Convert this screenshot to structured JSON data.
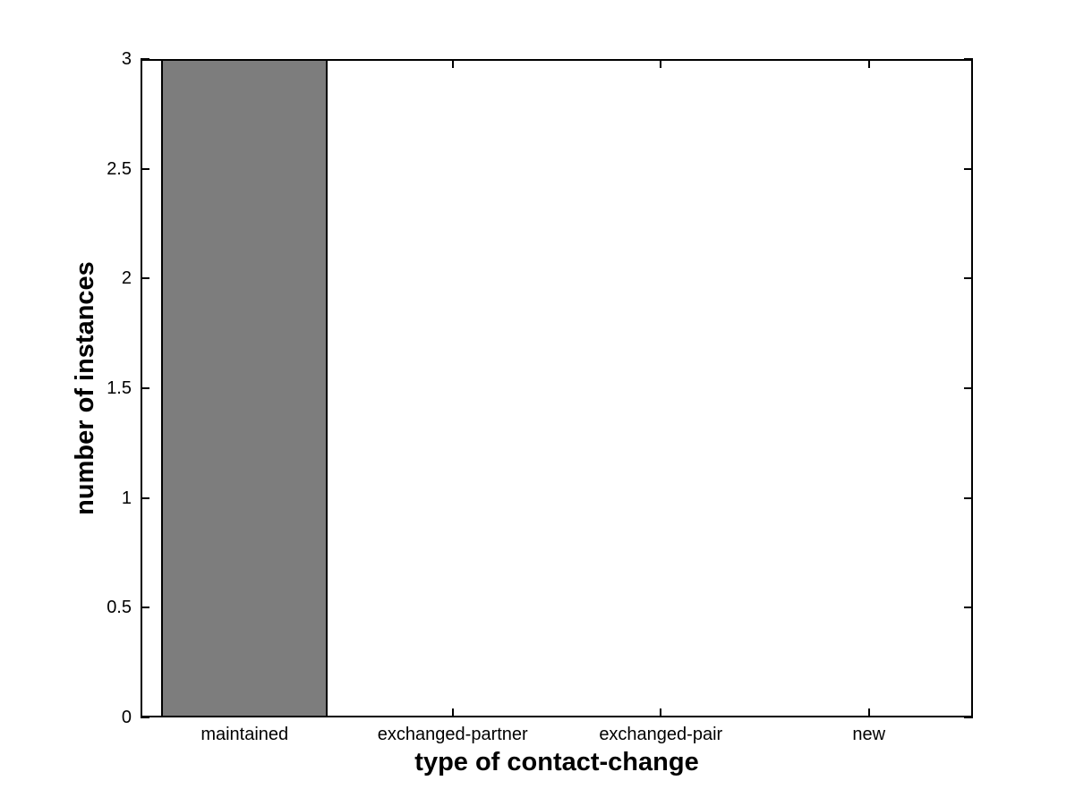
{
  "figure": {
    "background": "#ffffff"
  },
  "chart_data": {
    "type": "bar",
    "title": "",
    "xlabel": "type of contact-change",
    "ylabel": "number of instances",
    "categories": [
      "maintained",
      "exchanged-partner",
      "exchanged-pair",
      "new"
    ],
    "values": [
      3,
      0,
      0,
      0
    ],
    "ylim": [
      0,
      3
    ],
    "yticks": [
      0,
      0.5,
      1,
      1.5,
      2,
      2.5,
      3
    ],
    "ytick_labels": [
      "0",
      "0.5",
      "1",
      "1.5",
      "2",
      "2.5",
      "3"
    ],
    "bar_width_fraction": 0.8,
    "bar_fill": "#7d7d7d",
    "bar_edge": "#000000",
    "axis_color": "#000000",
    "grid": false,
    "box": true,
    "tick_direction": "in",
    "legend_position": "none"
  }
}
